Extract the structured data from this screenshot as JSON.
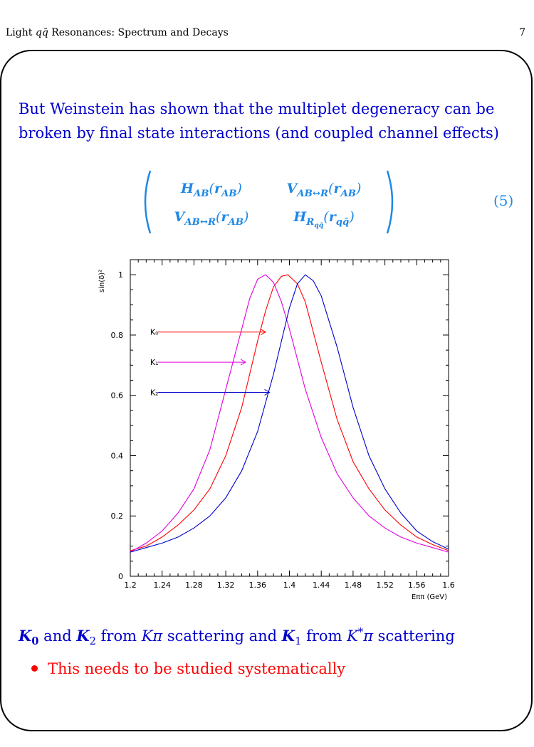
{
  "header": {
    "title": "Light q q̄ Resonances: Spectrum and Decays",
    "page_number": "7"
  },
  "intro_text": "But Weinstein has shown that the multiplet degeneracy can be broken by final state interactions (and coupled channel effects)",
  "equation": {
    "m11": "H_AB(r_AB)",
    "m12": "V_AB↔R(r_AB)",
    "m21": "V_AB↔R(r_AB)",
    "m22": "H_Rqq̄(r_qq̄)",
    "number": "(5)"
  },
  "chart_data": {
    "type": "line",
    "xlabel": "Eππ (GeV)",
    "ylabel": "sin(δ)²",
    "xlim": [
      1.2,
      1.6
    ],
    "ylim": [
      0,
      1.05
    ],
    "x_ticks": [
      "1.2",
      "1.24",
      "1.28",
      "1.32",
      "1.36",
      "1.4",
      "1.44",
      "1.48",
      "1.52",
      "1.56",
      "1.6"
    ],
    "y_ticks": [
      "0",
      "0.2",
      "0.4",
      "0.6",
      "0.8",
      "1"
    ],
    "series": [
      {
        "name": "K₀",
        "color": "#ff0000",
        "peak": 1.398,
        "x": [
          1.2,
          1.22,
          1.24,
          1.26,
          1.28,
          1.3,
          1.32,
          1.34,
          1.36,
          1.37,
          1.38,
          1.39,
          1.398,
          1.41,
          1.42,
          1.44,
          1.46,
          1.48,
          1.5,
          1.52,
          1.54,
          1.56,
          1.58,
          1.6
        ],
        "y": [
          0.085,
          0.1,
          0.13,
          0.17,
          0.22,
          0.29,
          0.4,
          0.56,
          0.78,
          0.88,
          0.96,
          0.995,
          1.0,
          0.97,
          0.91,
          0.71,
          0.52,
          0.38,
          0.29,
          0.22,
          0.17,
          0.13,
          0.105,
          0.085
        ]
      },
      {
        "name": "K₁",
        "color": "#e000e0",
        "peak": 1.37,
        "x": [
          1.2,
          1.22,
          1.24,
          1.26,
          1.28,
          1.3,
          1.32,
          1.34,
          1.35,
          1.36,
          1.37,
          1.38,
          1.39,
          1.4,
          1.42,
          1.44,
          1.46,
          1.48,
          1.5,
          1.52,
          1.54,
          1.56,
          1.58,
          1.6
        ],
        "y": [
          0.08,
          0.11,
          0.15,
          0.21,
          0.29,
          0.42,
          0.62,
          0.82,
          0.92,
          0.985,
          1.0,
          0.975,
          0.91,
          0.82,
          0.62,
          0.46,
          0.34,
          0.26,
          0.2,
          0.16,
          0.13,
          0.11,
          0.095,
          0.08
        ]
      },
      {
        "name": "K₂",
        "color": "#0000cc",
        "peak": 1.42,
        "x": [
          1.2,
          1.22,
          1.24,
          1.26,
          1.28,
          1.3,
          1.32,
          1.34,
          1.36,
          1.38,
          1.39,
          1.4,
          1.41,
          1.42,
          1.43,
          1.44,
          1.46,
          1.48,
          1.5,
          1.52,
          1.54,
          1.56,
          1.58,
          1.6
        ],
        "y": [
          0.08,
          0.095,
          0.11,
          0.13,
          0.16,
          0.2,
          0.26,
          0.35,
          0.48,
          0.67,
          0.78,
          0.89,
          0.97,
          1.0,
          0.98,
          0.93,
          0.76,
          0.56,
          0.4,
          0.29,
          0.21,
          0.15,
          0.115,
          0.09
        ]
      }
    ],
    "annotations": [
      {
        "text": "K₀",
        "arrow_to": [
          1.37,
          0.81
        ]
      },
      {
        "text": "K₁",
        "arrow_to": [
          1.345,
          0.71
        ]
      },
      {
        "text": "K₂",
        "arrow_to": [
          1.375,
          0.61
        ]
      }
    ]
  },
  "caption": "K₀ and K₂ from Kπ scattering and K₁ from K*π scattering",
  "bullet": "This needs to be studied systematically"
}
